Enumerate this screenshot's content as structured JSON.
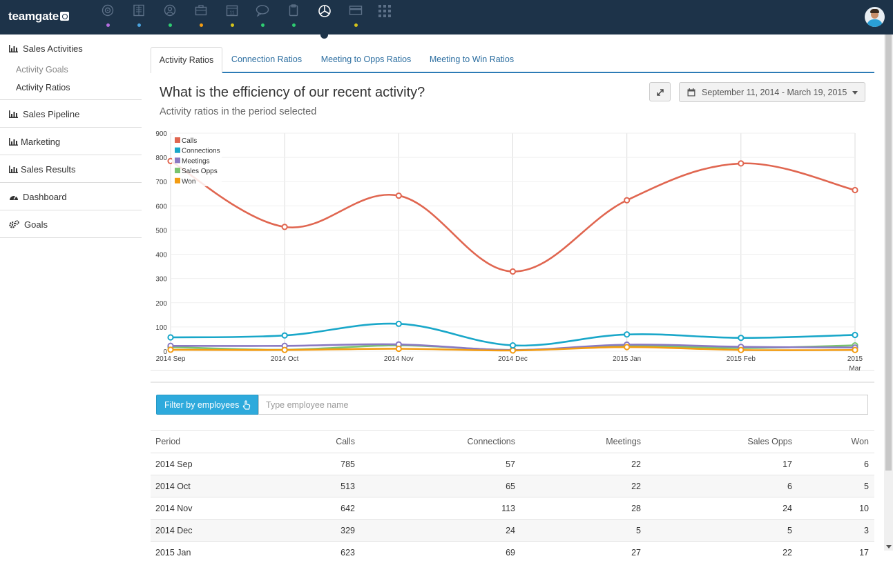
{
  "app": {
    "brand": "teamgate"
  },
  "nav": {
    "icons": [
      {
        "name": "target-icon",
        "color": "#b46de0"
      },
      {
        "name": "building-icon",
        "color": "#4aa3df"
      },
      {
        "name": "contacts-icon",
        "color": "#2ecc71"
      },
      {
        "name": "briefcase-icon",
        "color": "#f39c12"
      },
      {
        "name": "calendar-icon",
        "color": "#d4c31a"
      },
      {
        "name": "chat-icon",
        "color": "#2ecc71"
      },
      {
        "name": "clipboard-icon",
        "color": "#2ecc71"
      },
      {
        "name": "analytics-pie-icon",
        "color": "#ffffff"
      },
      {
        "name": "card-icon",
        "color": "#d4c31a"
      },
      {
        "name": "apps-grid-icon",
        "color": "#ffffff"
      }
    ],
    "calendar_day": "11"
  },
  "sidebar": {
    "section_title": "Sales Activities",
    "subitems": [
      "Activity Goals",
      "Activity Ratios"
    ],
    "items": [
      "Sales Pipeline",
      "Marketing",
      "Sales Results",
      "Dashboard",
      "Goals"
    ]
  },
  "tabs": [
    "Activity Ratios",
    "Connection Ratios",
    "Meeting to Opps Ratios",
    "Meeting to Win Ratios"
  ],
  "panel": {
    "title": "What is the efficiency of our recent activity?",
    "subtitle": "Activity ratios in the period selected",
    "date_range": "September 11, 2014 - March 19, 2015"
  },
  "chart_data": {
    "type": "line",
    "categories": [
      "2014 Sep",
      "2014 Oct",
      "2014 Nov",
      "2014 Dec",
      "2015 Jan",
      "2015 Feb",
      "2015 Mar"
    ],
    "x_tick_labels": [
      [
        "2014 Sep"
      ],
      [
        "2014 Oct"
      ],
      [
        "2014 Nov"
      ],
      [
        "2014 Dec"
      ],
      [
        "2015 Jan"
      ],
      [
        "2015 Feb"
      ],
      [
        "2015",
        "Mar"
      ]
    ],
    "ylim": [
      0,
      900
    ],
    "yticks": [
      0,
      100,
      200,
      300,
      400,
      500,
      600,
      700,
      800,
      900
    ],
    "grid": true,
    "legend": "top-left",
    "series": [
      {
        "name": "Calls",
        "color": "#e06650",
        "values": [
          785,
          513,
          642,
          329,
          623,
          775,
          665
        ]
      },
      {
        "name": "Connections",
        "color": "#19a7c9",
        "values": [
          57,
          65,
          113,
          24,
          69,
          55,
          67
        ]
      },
      {
        "name": "Meetings",
        "color": "#8a79c2",
        "values": [
          22,
          22,
          28,
          5,
          27,
          18,
          15
        ]
      },
      {
        "name": "Sales Opps",
        "color": "#79c36f",
        "values": [
          17,
          6,
          24,
          5,
          22,
          13,
          24
        ]
      },
      {
        "name": "Won",
        "color": "#f39c12",
        "values": [
          6,
          5,
          10,
          3,
          17,
          5,
          5
        ]
      }
    ]
  },
  "filter": {
    "button_label": "Filter by employees",
    "placeholder": "Type employee name"
  },
  "table": {
    "columns": [
      "Period",
      "Calls",
      "Connections",
      "Meetings",
      "Sales Opps",
      "Won"
    ],
    "rows": [
      [
        "2014 Sep",
        "785",
        "57",
        "22",
        "17",
        "6"
      ],
      [
        "2014 Oct",
        "513",
        "65",
        "22",
        "6",
        "5"
      ],
      [
        "2014 Nov",
        "642",
        "113",
        "28",
        "24",
        "10"
      ],
      [
        "2014 Dec",
        "329",
        "24",
        "5",
        "5",
        "3"
      ],
      [
        "2015 Jan",
        "623",
        "69",
        "27",
        "22",
        "17"
      ]
    ]
  }
}
